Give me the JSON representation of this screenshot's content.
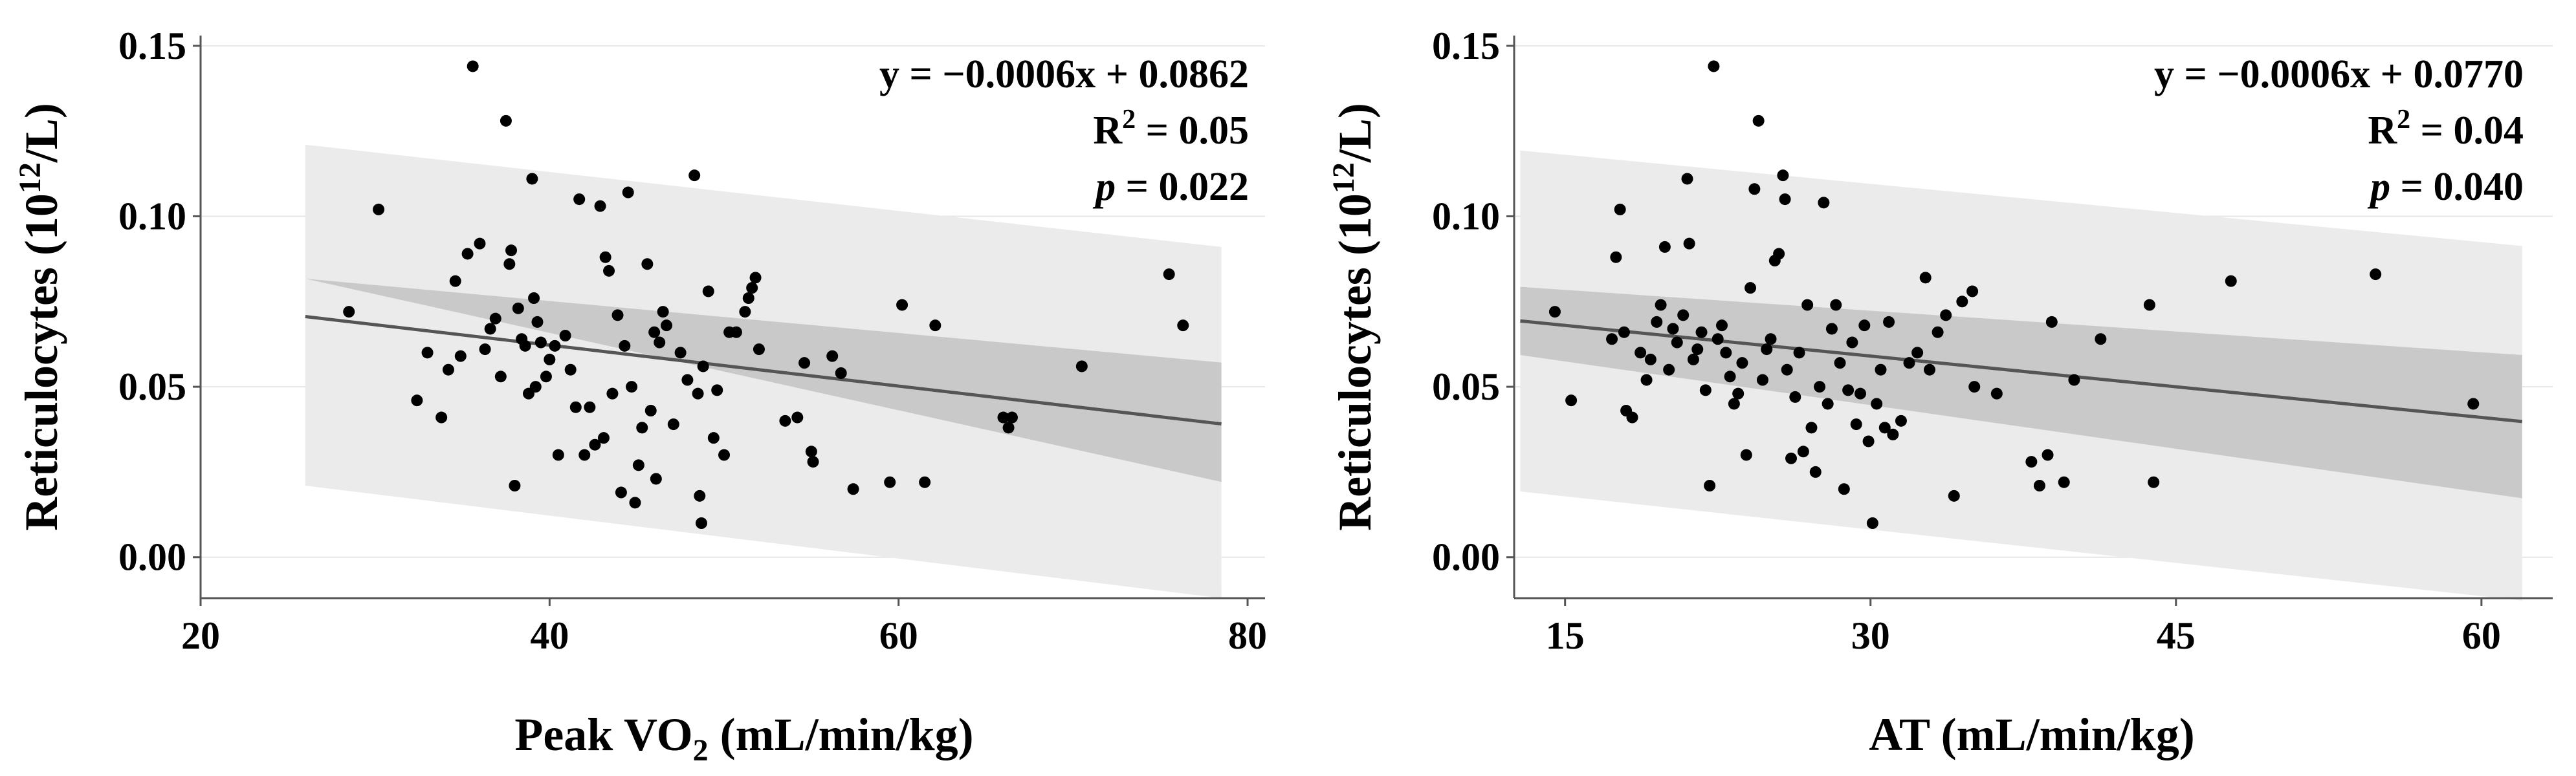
{
  "chart_data": [
    {
      "type": "scatter",
      "xlabel_parts": [
        "Peak VO",
        "2",
        " (mL/min/kg)"
      ],
      "ylabel_parts": [
        "Reticulocytes (10",
        "12",
        "/L)"
      ],
      "xlim": [
        20,
        81
      ],
      "ylim": [
        -0.012,
        0.153
      ],
      "xticks": [
        20,
        40,
        60,
        80
      ],
      "xtick_labels": [
        "20",
        "40",
        "60",
        "80"
      ],
      "yticks": [
        0.0,
        0.05,
        0.1,
        0.15
      ],
      "ytick_labels": [
        "0.00",
        "0.05",
        "0.10",
        "0.15"
      ],
      "grid": "horizontal",
      "regression": {
        "slope": -0.0006,
        "intercept": 0.0862,
        "x_range": [
          26,
          78.5
        ]
      },
      "confidence_band": {
        "lower": [
          0.0817,
          0.0221
        ],
        "upper": [
          0.0817,
          0.0571
        ]
      },
      "prediction_band": {
        "lower": [
          0.021,
          -0.012
        ],
        "upper": [
          0.121,
          0.091
        ]
      },
      "equation": "y = −0.0006x + 0.0862",
      "r2_prefix": "R",
      "r2_sup": "2",
      "r2_value": " = 0.05",
      "p_symbol": "p",
      "p_value": " = 0.022",
      "points": [
        [
          28.5,
          0.072
        ],
        [
          30.2,
          0.102
        ],
        [
          32.4,
          0.046
        ],
        [
          33.0,
          0.06
        ],
        [
          33.8,
          0.041
        ],
        [
          34.2,
          0.055
        ],
        [
          34.6,
          0.081
        ],
        [
          34.9,
          0.059
        ],
        [
          35.3,
          0.089
        ],
        [
          35.6,
          0.144
        ],
        [
          36.0,
          0.092
        ],
        [
          36.3,
          0.061
        ],
        [
          36.6,
          0.067
        ],
        [
          36.9,
          0.07
        ],
        [
          37.2,
          0.053
        ],
        [
          37.5,
          0.128
        ],
        [
          37.7,
          0.086
        ],
        [
          37.8,
          0.09
        ],
        [
          38.0,
          0.021
        ],
        [
          38.2,
          0.073
        ],
        [
          38.4,
          0.064
        ],
        [
          38.6,
          0.062
        ],
        [
          38.8,
          0.048
        ],
        [
          39.0,
          0.111
        ],
        [
          39.1,
          0.076
        ],
        [
          39.2,
          0.05
        ],
        [
          39.3,
          0.069
        ],
        [
          39.5,
          0.063
        ],
        [
          39.8,
          0.053
        ],
        [
          40.0,
          0.058
        ],
        [
          40.3,
          0.062
        ],
        [
          40.5,
          0.03
        ],
        [
          40.9,
          0.065
        ],
        [
          41.2,
          0.055
        ],
        [
          41.5,
          0.044
        ],
        [
          41.7,
          0.105
        ],
        [
          42.0,
          0.03
        ],
        [
          42.3,
          0.044
        ],
        [
          42.6,
          0.033
        ],
        [
          42.9,
          0.103
        ],
        [
          43.1,
          0.035
        ],
        [
          43.2,
          0.088
        ],
        [
          43.4,
          0.084
        ],
        [
          43.6,
          0.048
        ],
        [
          43.9,
          0.071
        ],
        [
          44.1,
          0.019
        ],
        [
          44.3,
          0.062
        ],
        [
          44.5,
          0.107
        ],
        [
          44.7,
          0.05
        ],
        [
          44.9,
          0.016
        ],
        [
          45.1,
          0.027
        ],
        [
          45.3,
          0.038
        ],
        [
          45.6,
          0.086
        ],
        [
          45.8,
          0.043
        ],
        [
          46.0,
          0.066
        ],
        [
          46.1,
          0.023
        ],
        [
          46.3,
          0.063
        ],
        [
          46.5,
          0.072
        ],
        [
          46.7,
          0.068
        ],
        [
          47.1,
          0.039
        ],
        [
          47.5,
          0.06
        ],
        [
          47.9,
          0.052
        ],
        [
          48.3,
          0.112
        ],
        [
          48.5,
          0.048
        ],
        [
          48.6,
          0.018
        ],
        [
          48.7,
          0.01
        ],
        [
          48.8,
          0.056
        ],
        [
          49.1,
          0.078
        ],
        [
          49.4,
          0.035
        ],
        [
          49.6,
          0.049
        ],
        [
          50.0,
          0.03
        ],
        [
          50.3,
          0.066
        ],
        [
          50.7,
          0.066
        ],
        [
          51.2,
          0.072
        ],
        [
          51.4,
          0.076
        ],
        [
          51.6,
          0.079
        ],
        [
          51.8,
          0.082
        ],
        [
          52.0,
          0.061
        ],
        [
          53.5,
          0.04
        ],
        [
          54.2,
          0.041
        ],
        [
          54.6,
          0.057
        ],
        [
          55.0,
          0.031
        ],
        [
          55.1,
          0.028
        ],
        [
          56.2,
          0.059
        ],
        [
          56.7,
          0.054
        ],
        [
          57.4,
          0.02
        ],
        [
          59.5,
          0.022
        ],
        [
          60.2,
          0.074
        ],
        [
          61.5,
          0.022
        ],
        [
          62.1,
          0.068
        ],
        [
          66.0,
          0.041
        ],
        [
          66.3,
          0.038
        ],
        [
          66.5,
          0.041
        ],
        [
          70.5,
          0.056
        ],
        [
          75.5,
          0.083
        ],
        [
          76.3,
          0.068
        ]
      ]
    },
    {
      "type": "scatter",
      "xlabel_parts": [
        "AT (mL/min/kg)"
      ],
      "ylabel_parts": [
        "Reticulocytes (10",
        "12",
        "/L)"
      ],
      "xlim": [
        12.5,
        63.5
      ],
      "ylim": [
        -0.012,
        0.153
      ],
      "xticks": [
        15,
        30,
        45,
        60
      ],
      "xtick_labels": [
        "15",
        "30",
        "45",
        "60"
      ],
      "yticks": [
        0.0,
        0.05,
        0.1,
        0.15
      ],
      "ytick_labels": [
        "0.00",
        "0.05",
        "0.10",
        "0.15"
      ],
      "grid": "horizontal",
      "regression": {
        "slope": -0.0006,
        "intercept": 0.077,
        "x_range": [
          12.8,
          62
        ]
      },
      "confidence_band": {
        "lower": [
          0.0593,
          0.0173
        ],
        "upper": [
          0.0793,
          0.0593
        ]
      },
      "prediction_band": {
        "lower": [
          0.0193,
          -0.0127
        ],
        "upper": [
          0.1193,
          0.0913
        ]
      },
      "equation": "y = −0.0006x + 0.0770",
      "r2_prefix": "R",
      "r2_sup": "2",
      "r2_value": " = 0.04",
      "p_symbol": "p",
      "p_value": " = 0.040",
      "points": [
        [
          14.5,
          0.072
        ],
        [
          15.3,
          0.046
        ],
        [
          17.3,
          0.064
        ],
        [
          17.5,
          0.088
        ],
        [
          17.7,
          0.102
        ],
        [
          17.9,
          0.066
        ],
        [
          18.0,
          0.043
        ],
        [
          18.3,
          0.041
        ],
        [
          18.7,
          0.06
        ],
        [
          19.0,
          0.052
        ],
        [
          19.2,
          0.058
        ],
        [
          19.5,
          0.069
        ],
        [
          19.7,
          0.074
        ],
        [
          19.9,
          0.091
        ],
        [
          20.1,
          0.055
        ],
        [
          20.3,
          0.067
        ],
        [
          20.5,
          0.063
        ],
        [
          20.8,
          0.071
        ],
        [
          21.0,
          0.111
        ],
        [
          21.1,
          0.092
        ],
        [
          21.3,
          0.058
        ],
        [
          21.5,
          0.061
        ],
        [
          21.7,
          0.066
        ],
        [
          21.9,
          0.049
        ],
        [
          22.1,
          0.021
        ],
        [
          22.3,
          0.144
        ],
        [
          22.5,
          0.064
        ],
        [
          22.7,
          0.068
        ],
        [
          22.9,
          0.06
        ],
        [
          23.1,
          0.053
        ],
        [
          23.3,
          0.045
        ],
        [
          23.5,
          0.048
        ],
        [
          23.7,
          0.057
        ],
        [
          23.9,
          0.03
        ],
        [
          24.1,
          0.079
        ],
        [
          24.3,
          0.108
        ],
        [
          24.5,
          0.128
        ],
        [
          24.7,
          0.052
        ],
        [
          24.9,
          0.061
        ],
        [
          25.1,
          0.064
        ],
        [
          25.3,
          0.087
        ],
        [
          25.5,
          0.089
        ],
        [
          25.7,
          0.112
        ],
        [
          25.8,
          0.105
        ],
        [
          25.9,
          0.055
        ],
        [
          26.1,
          0.029
        ],
        [
          26.3,
          0.047
        ],
        [
          26.5,
          0.06
        ],
        [
          26.7,
          0.031
        ],
        [
          26.9,
          0.074
        ],
        [
          27.1,
          0.038
        ],
        [
          27.3,
          0.025
        ],
        [
          27.5,
          0.05
        ],
        [
          27.7,
          0.104
        ],
        [
          27.9,
          0.045
        ],
        [
          28.1,
          0.067
        ],
        [
          28.3,
          0.074
        ],
        [
          28.5,
          0.057
        ],
        [
          28.7,
          0.02
        ],
        [
          28.9,
          0.049
        ],
        [
          29.1,
          0.063
        ],
        [
          29.3,
          0.039
        ],
        [
          29.5,
          0.048
        ],
        [
          29.7,
          0.068
        ],
        [
          29.9,
          0.034
        ],
        [
          30.1,
          0.01
        ],
        [
          30.3,
          0.045
        ],
        [
          30.5,
          0.055
        ],
        [
          30.7,
          0.038
        ],
        [
          30.9,
          0.069
        ],
        [
          31.1,
          0.036
        ],
        [
          31.5,
          0.04
        ],
        [
          31.9,
          0.057
        ],
        [
          32.3,
          0.06
        ],
        [
          32.7,
          0.082
        ],
        [
          32.9,
          0.055
        ],
        [
          33.3,
          0.066
        ],
        [
          33.7,
          0.071
        ],
        [
          34.1,
          0.018
        ],
        [
          34.5,
          0.075
        ],
        [
          35.0,
          0.078
        ],
        [
          35.1,
          0.05
        ],
        [
          36.2,
          0.048
        ],
        [
          37.9,
          0.028
        ],
        [
          38.3,
          0.021
        ],
        [
          38.7,
          0.03
        ],
        [
          38.9,
          0.069
        ],
        [
          39.5,
          0.022
        ],
        [
          40.0,
          0.052
        ],
        [
          41.3,
          0.064
        ],
        [
          43.7,
          0.074
        ],
        [
          43.9,
          0.022
        ],
        [
          47.7,
          0.081
        ],
        [
          54.8,
          0.083
        ],
        [
          59.6,
          0.045
        ]
      ]
    }
  ]
}
